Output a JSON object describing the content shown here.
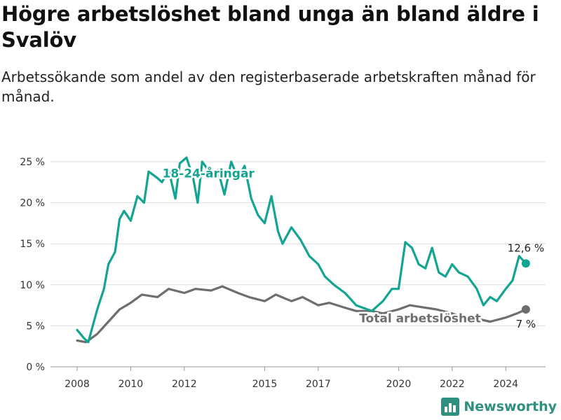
{
  "title": "Högre arbetslöshet bland unga än bland äldre i Svalöv",
  "subtitle": "Arbetssökande som andel av den registerbaserade arbetskraften månad för månad.",
  "brand": "Newsworthy",
  "colors": {
    "youth": "#13a592",
    "total": "#6e6e6e",
    "grid": "#dddddd",
    "brand": "#2f8f80"
  },
  "chart_data": {
    "type": "line",
    "x_axis": {
      "ticks": [
        "2008",
        "2010",
        "2012",
        "2015",
        "2017",
        "2020",
        "2022",
        "2024"
      ]
    },
    "y_axis": {
      "ticks": [
        "0 %",
        "5 %",
        "10 %",
        "15 %",
        "20 %",
        "25 %"
      ],
      "ylim": [
        0,
        25
      ]
    },
    "grid": true,
    "series": [
      {
        "name": "18-24-åringar",
        "end_label": "12,6 %",
        "points": [
          [
            "2008-01",
            4.5
          ],
          [
            "2008-04",
            3.5
          ],
          [
            "2008-06",
            3.0
          ],
          [
            "2008-08",
            5.0
          ],
          [
            "2008-10",
            7.0
          ],
          [
            "2009-01",
            9.5
          ],
          [
            "2009-03",
            12.5
          ],
          [
            "2009-06",
            14.0
          ],
          [
            "2009-08",
            18.0
          ],
          [
            "2009-10",
            19.0
          ],
          [
            "2010-01",
            17.8
          ],
          [
            "2010-04",
            20.8
          ],
          [
            "2010-07",
            20.0
          ],
          [
            "2010-09",
            23.8
          ],
          [
            "2011-01",
            23.0
          ],
          [
            "2011-03",
            22.5
          ],
          [
            "2011-06",
            24.0
          ],
          [
            "2011-09",
            20.5
          ],
          [
            "2011-11",
            24.8
          ],
          [
            "2012-02",
            25.5
          ],
          [
            "2012-05",
            23.0
          ],
          [
            "2012-07",
            20.0
          ],
          [
            "2012-09",
            25.0
          ],
          [
            "2013-01",
            23.5
          ],
          [
            "2013-04",
            24.0
          ],
          [
            "2013-07",
            21.0
          ],
          [
            "2013-10",
            25.0
          ],
          [
            "2014-01",
            23.0
          ],
          [
            "2014-04",
            24.5
          ],
          [
            "2014-07",
            20.5
          ],
          [
            "2014-10",
            18.5
          ],
          [
            "2015-01",
            17.5
          ],
          [
            "2015-04",
            20.8
          ],
          [
            "2015-07",
            16.5
          ],
          [
            "2015-09",
            15.0
          ],
          [
            "2016-01",
            17.0
          ],
          [
            "2016-05",
            15.5
          ],
          [
            "2016-09",
            13.5
          ],
          [
            "2017-01",
            12.5
          ],
          [
            "2017-04",
            11.0
          ],
          [
            "2017-08",
            10.0
          ],
          [
            "2018-01",
            9.0
          ],
          [
            "2018-06",
            7.5
          ],
          [
            "2019-01",
            6.8
          ],
          [
            "2019-06",
            8.0
          ],
          [
            "2019-10",
            9.5
          ],
          [
            "2020-01",
            9.5
          ],
          [
            "2020-04",
            15.2
          ],
          [
            "2020-07",
            14.5
          ],
          [
            "2020-10",
            12.5
          ],
          [
            "2021-01",
            12.0
          ],
          [
            "2021-04",
            14.5
          ],
          [
            "2021-07",
            11.5
          ],
          [
            "2021-10",
            11.0
          ],
          [
            "2022-01",
            12.5
          ],
          [
            "2022-04",
            11.5
          ],
          [
            "2022-08",
            11.0
          ],
          [
            "2022-12",
            9.5
          ],
          [
            "2023-03",
            7.5
          ],
          [
            "2023-06",
            8.5
          ],
          [
            "2023-09",
            8.0
          ],
          [
            "2024-01",
            9.5
          ],
          [
            "2024-04",
            10.5
          ],
          [
            "2024-07",
            13.5
          ],
          [
            "2024-10",
            12.6
          ]
        ]
      },
      {
        "name": "Total arbetslöshet",
        "end_label": "7 %",
        "points": [
          [
            "2008-01",
            3.2
          ],
          [
            "2008-05",
            3.0
          ],
          [
            "2008-10",
            4.0
          ],
          [
            "2009-03",
            5.5
          ],
          [
            "2009-08",
            7.0
          ],
          [
            "2010-01",
            7.8
          ],
          [
            "2010-06",
            8.8
          ],
          [
            "2011-01",
            8.5
          ],
          [
            "2011-06",
            9.5
          ],
          [
            "2012-01",
            9.0
          ],
          [
            "2012-06",
            9.5
          ],
          [
            "2013-01",
            9.3
          ],
          [
            "2013-06",
            9.8
          ],
          [
            "2014-01",
            9.0
          ],
          [
            "2014-06",
            8.5
          ],
          [
            "2015-01",
            8.0
          ],
          [
            "2015-06",
            8.8
          ],
          [
            "2016-01",
            8.0
          ],
          [
            "2016-06",
            8.5
          ],
          [
            "2017-01",
            7.5
          ],
          [
            "2017-06",
            7.8
          ],
          [
            "2018-01",
            7.2
          ],
          [
            "2018-06",
            6.8
          ],
          [
            "2019-01",
            6.8
          ],
          [
            "2019-06",
            6.5
          ],
          [
            "2020-01",
            7.0
          ],
          [
            "2020-06",
            7.5
          ],
          [
            "2021-01",
            7.2
          ],
          [
            "2021-06",
            7.0
          ],
          [
            "2022-01",
            6.5
          ],
          [
            "2022-06",
            6.0
          ],
          [
            "2023-01",
            5.8
          ],
          [
            "2023-06",
            5.5
          ],
          [
            "2024-01",
            6.0
          ],
          [
            "2024-06",
            6.5
          ],
          [
            "2024-10",
            7.0
          ]
        ]
      }
    ]
  }
}
